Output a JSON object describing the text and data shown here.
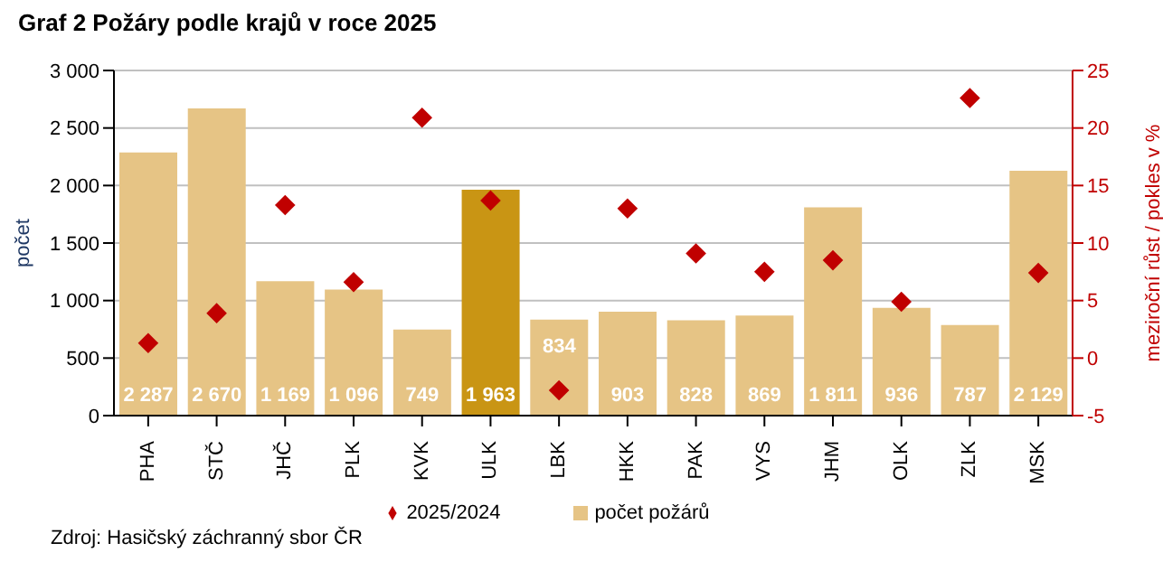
{
  "chart_data": {
    "type": "bar",
    "title": "Graf 2 Požáry podle krajů v roce 2025",
    "categories": [
      "PHA",
      "STČ",
      "JHČ",
      "PLK",
      "KVK",
      "ULK",
      "LBK",
      "HKK",
      "PAK",
      "VYS",
      "JHM",
      "OLK",
      "ZLK",
      "MSK"
    ],
    "series": [
      {
        "name": "počet požárů",
        "color": "#e6c485",
        "colors": [
          "#e6c485",
          "#e6c485",
          "#e6c485",
          "#e6c485",
          "#e6c485",
          "#c99514",
          "#e6c485",
          "#e6c485",
          "#e6c485",
          "#e6c485",
          "#e6c485",
          "#e6c485",
          "#e6c485",
          "#e6c485"
        ],
        "values": [
          2287,
          2670,
          1169,
          1096,
          749,
          1963,
          834,
          903,
          828,
          869,
          1811,
          936,
          787,
          2129
        ],
        "value_labels": [
          "2 287",
          "2 670",
          "1 169",
          "1 096",
          "749",
          "1 963",
          "834",
          "903",
          "828",
          "869",
          "1 811",
          "936",
          "787",
          "2 129"
        ]
      },
      {
        "name": "2025/2024",
        "type": "scatter",
        "axis": "y2",
        "marker": "diamond",
        "color": "#c00000",
        "values": [
          1.3,
          3.9,
          13.3,
          6.6,
          20.9,
          13.7,
          -2.8,
          13.0,
          9.1,
          7.5,
          8.5,
          4.9,
          22.6,
          7.4
        ]
      }
    ],
    "ylabel": "počet",
    "y2label": "meziroční růst / pokles v %",
    "ylim": [
      0,
      3000
    ],
    "yticks": [
      0,
      {
        "value": 500,
        "label": "500"
      },
      {
        "value": 1000,
        "label": "1 000"
      },
      {
        "value": 1500,
        "label": "1 500"
      },
      {
        "value": 2000,
        "label": "2 000"
      },
      {
        "value": 2500,
        "label": "2 500"
      },
      {
        "value": 3000,
        "label": "3 000"
      }
    ],
    "y2lim": [
      -5,
      25
    ],
    "y2ticks": [
      -5,
      0,
      5,
      10,
      15,
      20,
      25
    ],
    "grid": "y",
    "legend": "bottom",
    "annotations": [
      "Zdroj: Hasičský záchranný sbor ČR"
    ]
  }
}
